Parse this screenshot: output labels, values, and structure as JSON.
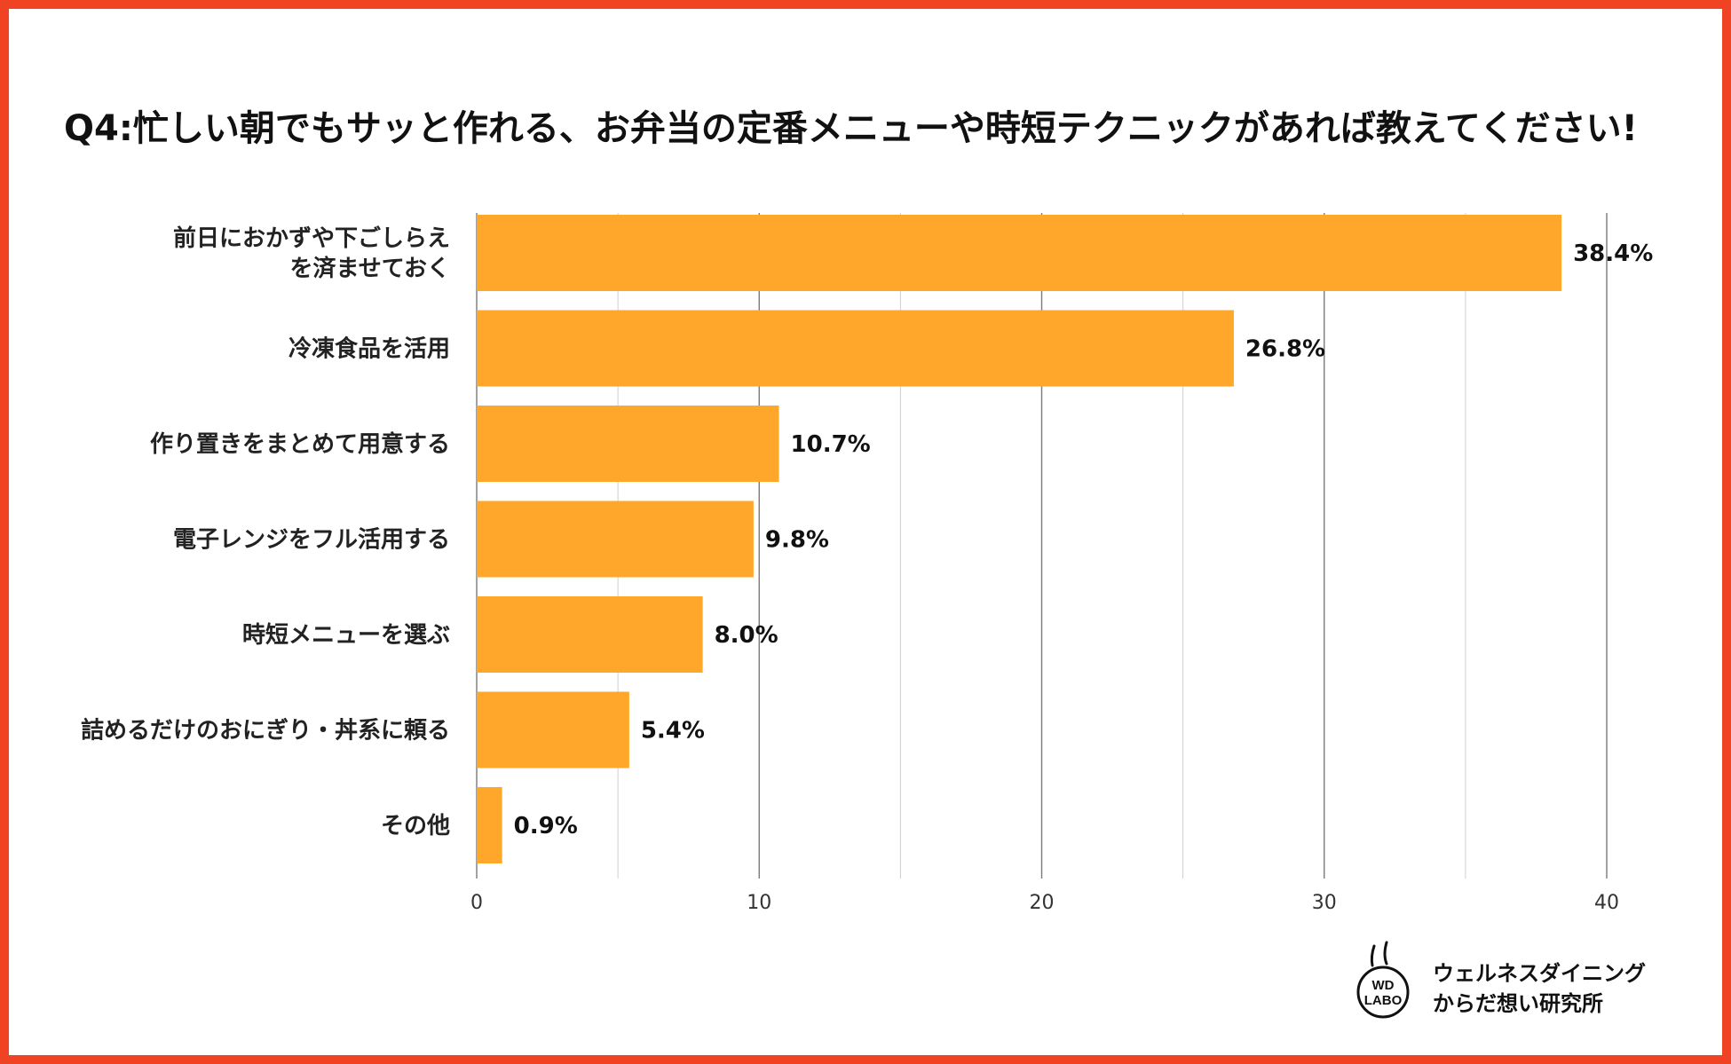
{
  "chart_data": {
    "type": "bar",
    "orientation": "horizontal",
    "title": "Q4:忙しい朝でもサッと作れる、お弁当の定番メニューや時短テクニックがあれば教えてください!",
    "categories": [
      "前日におかずや下ごしらえ\nを済ませておく",
      "冷凍食品を活用",
      "作り置きをまとめて用意する",
      "電子レンジをフル活用する",
      "時短メニューを選ぶ",
      "詰めるだけのおにぎり・丼系に頼る",
      "その他"
    ],
    "values": [
      38.4,
      26.8,
      10.7,
      9.8,
      8.0,
      5.4,
      0.9
    ],
    "value_labels": [
      "38.4%",
      "26.8%",
      "10.7%",
      "9.8%",
      "8.0%",
      "5.4%",
      "0.9%"
    ],
    "xlim": [
      0,
      40
    ],
    "xticks": [
      0,
      10,
      20,
      30,
      40
    ],
    "xlabel": "",
    "ylabel": "",
    "grid": true,
    "bar_color": "#FFA72A"
  },
  "frame_color": "#F04323",
  "brand": {
    "logo_text": [
      "WD",
      "LABO"
    ],
    "line1": "ウェルネスダイニング",
    "line2": "からだ想い研究所"
  }
}
